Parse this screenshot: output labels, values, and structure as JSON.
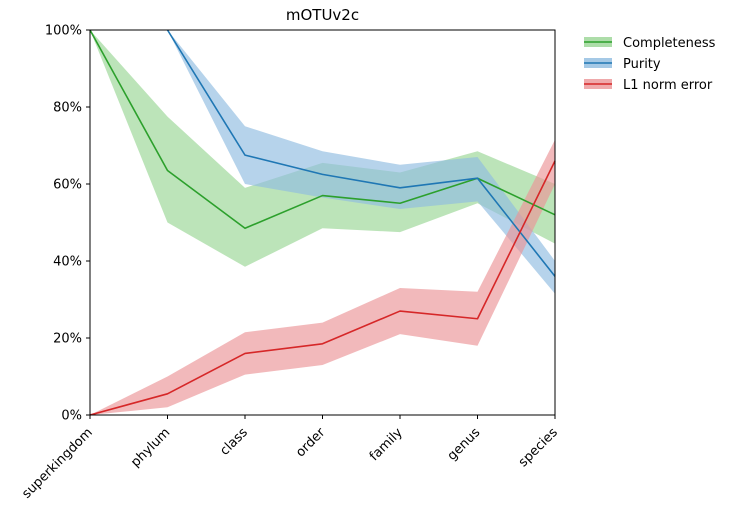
{
  "chart_data": {
    "type": "line",
    "title": "mOTUv2c",
    "xlabel": "",
    "ylabel": "",
    "categories": [
      "superkingdom",
      "phylum",
      "class",
      "order",
      "family",
      "genus",
      "species"
    ],
    "y_tick_labels": [
      "0%",
      "20%",
      "40%",
      "60%",
      "80%",
      "100%"
    ],
    "ylim": [
      0,
      100
    ],
    "grid": false,
    "legend_position": "outside-top-right",
    "series": [
      {
        "name": "Completeness",
        "color": "#2ca02c",
        "band_color": "#98d594",
        "values": [
          100,
          63.5,
          48.5,
          57,
          55,
          61.5,
          52
        ],
        "lower": [
          100,
          50,
          38.5,
          48.5,
          47.5,
          55,
          44.5
        ],
        "upper": [
          100,
          77.5,
          59,
          65.5,
          63,
          68.5,
          60
        ]
      },
      {
        "name": "Purity",
        "color": "#1f77b4",
        "band_color": "#8fbbe0",
        "values": [
          null,
          100,
          67.5,
          62.5,
          59,
          61.5,
          36
        ],
        "lower": [
          null,
          100,
          60,
          56.5,
          53.5,
          55.5,
          31.5
        ],
        "upper": [
          null,
          100,
          75,
          68.5,
          65,
          67,
          40
        ]
      },
      {
        "name": "L1 norm error",
        "color": "#d62728",
        "band_color": "#eb9396",
        "values": [
          0,
          5.5,
          16,
          18.5,
          27,
          25,
          66
        ],
        "lower": [
          0,
          2,
          10.5,
          13,
          21,
          18,
          60
        ],
        "upper": [
          0,
          10,
          21.5,
          24,
          33,
          32,
          71.5
        ]
      }
    ]
  }
}
